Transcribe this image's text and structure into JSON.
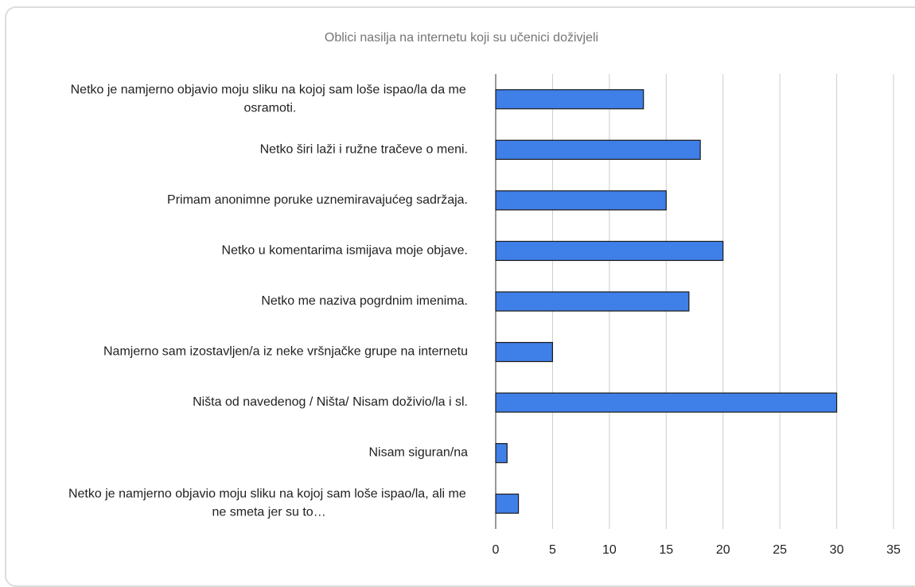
{
  "chart_data": {
    "type": "bar",
    "orientation": "horizontal",
    "title": "Oblici nasilja na internetu koji su učenici doživjeli",
    "categories": [
      "Netko je namjerno objavio moju sliku na kojoj sam loše ispao/la da me osramoti.",
      "Netko širi laži i ružne tračeve o meni.",
      "Primam anonimne poruke uznemiravajućeg sadržaja.",
      "Netko u komentarima ismijava moje objave.",
      "Netko me naziva pogrdnim imenima.",
      "Namjerno sam izostavljen/a iz neke vršnjačke grupe na internetu",
      "Ništa od navedenog / Ništa/ Nisam doživio/la i sl.",
      "Nisam siguran/na",
      "Netko je namjerno objavio moju sliku na kojoj sam loše ispao/la, ali me ne smeta jer su to…"
    ],
    "values": [
      13,
      18,
      15,
      20,
      17,
      5,
      30,
      1,
      2
    ],
    "color": "#3f7fe8",
    "xlim": [
      0,
      35
    ],
    "xticks": [
      0,
      5,
      10,
      15,
      20,
      25,
      30,
      35
    ],
    "grid": true
  }
}
